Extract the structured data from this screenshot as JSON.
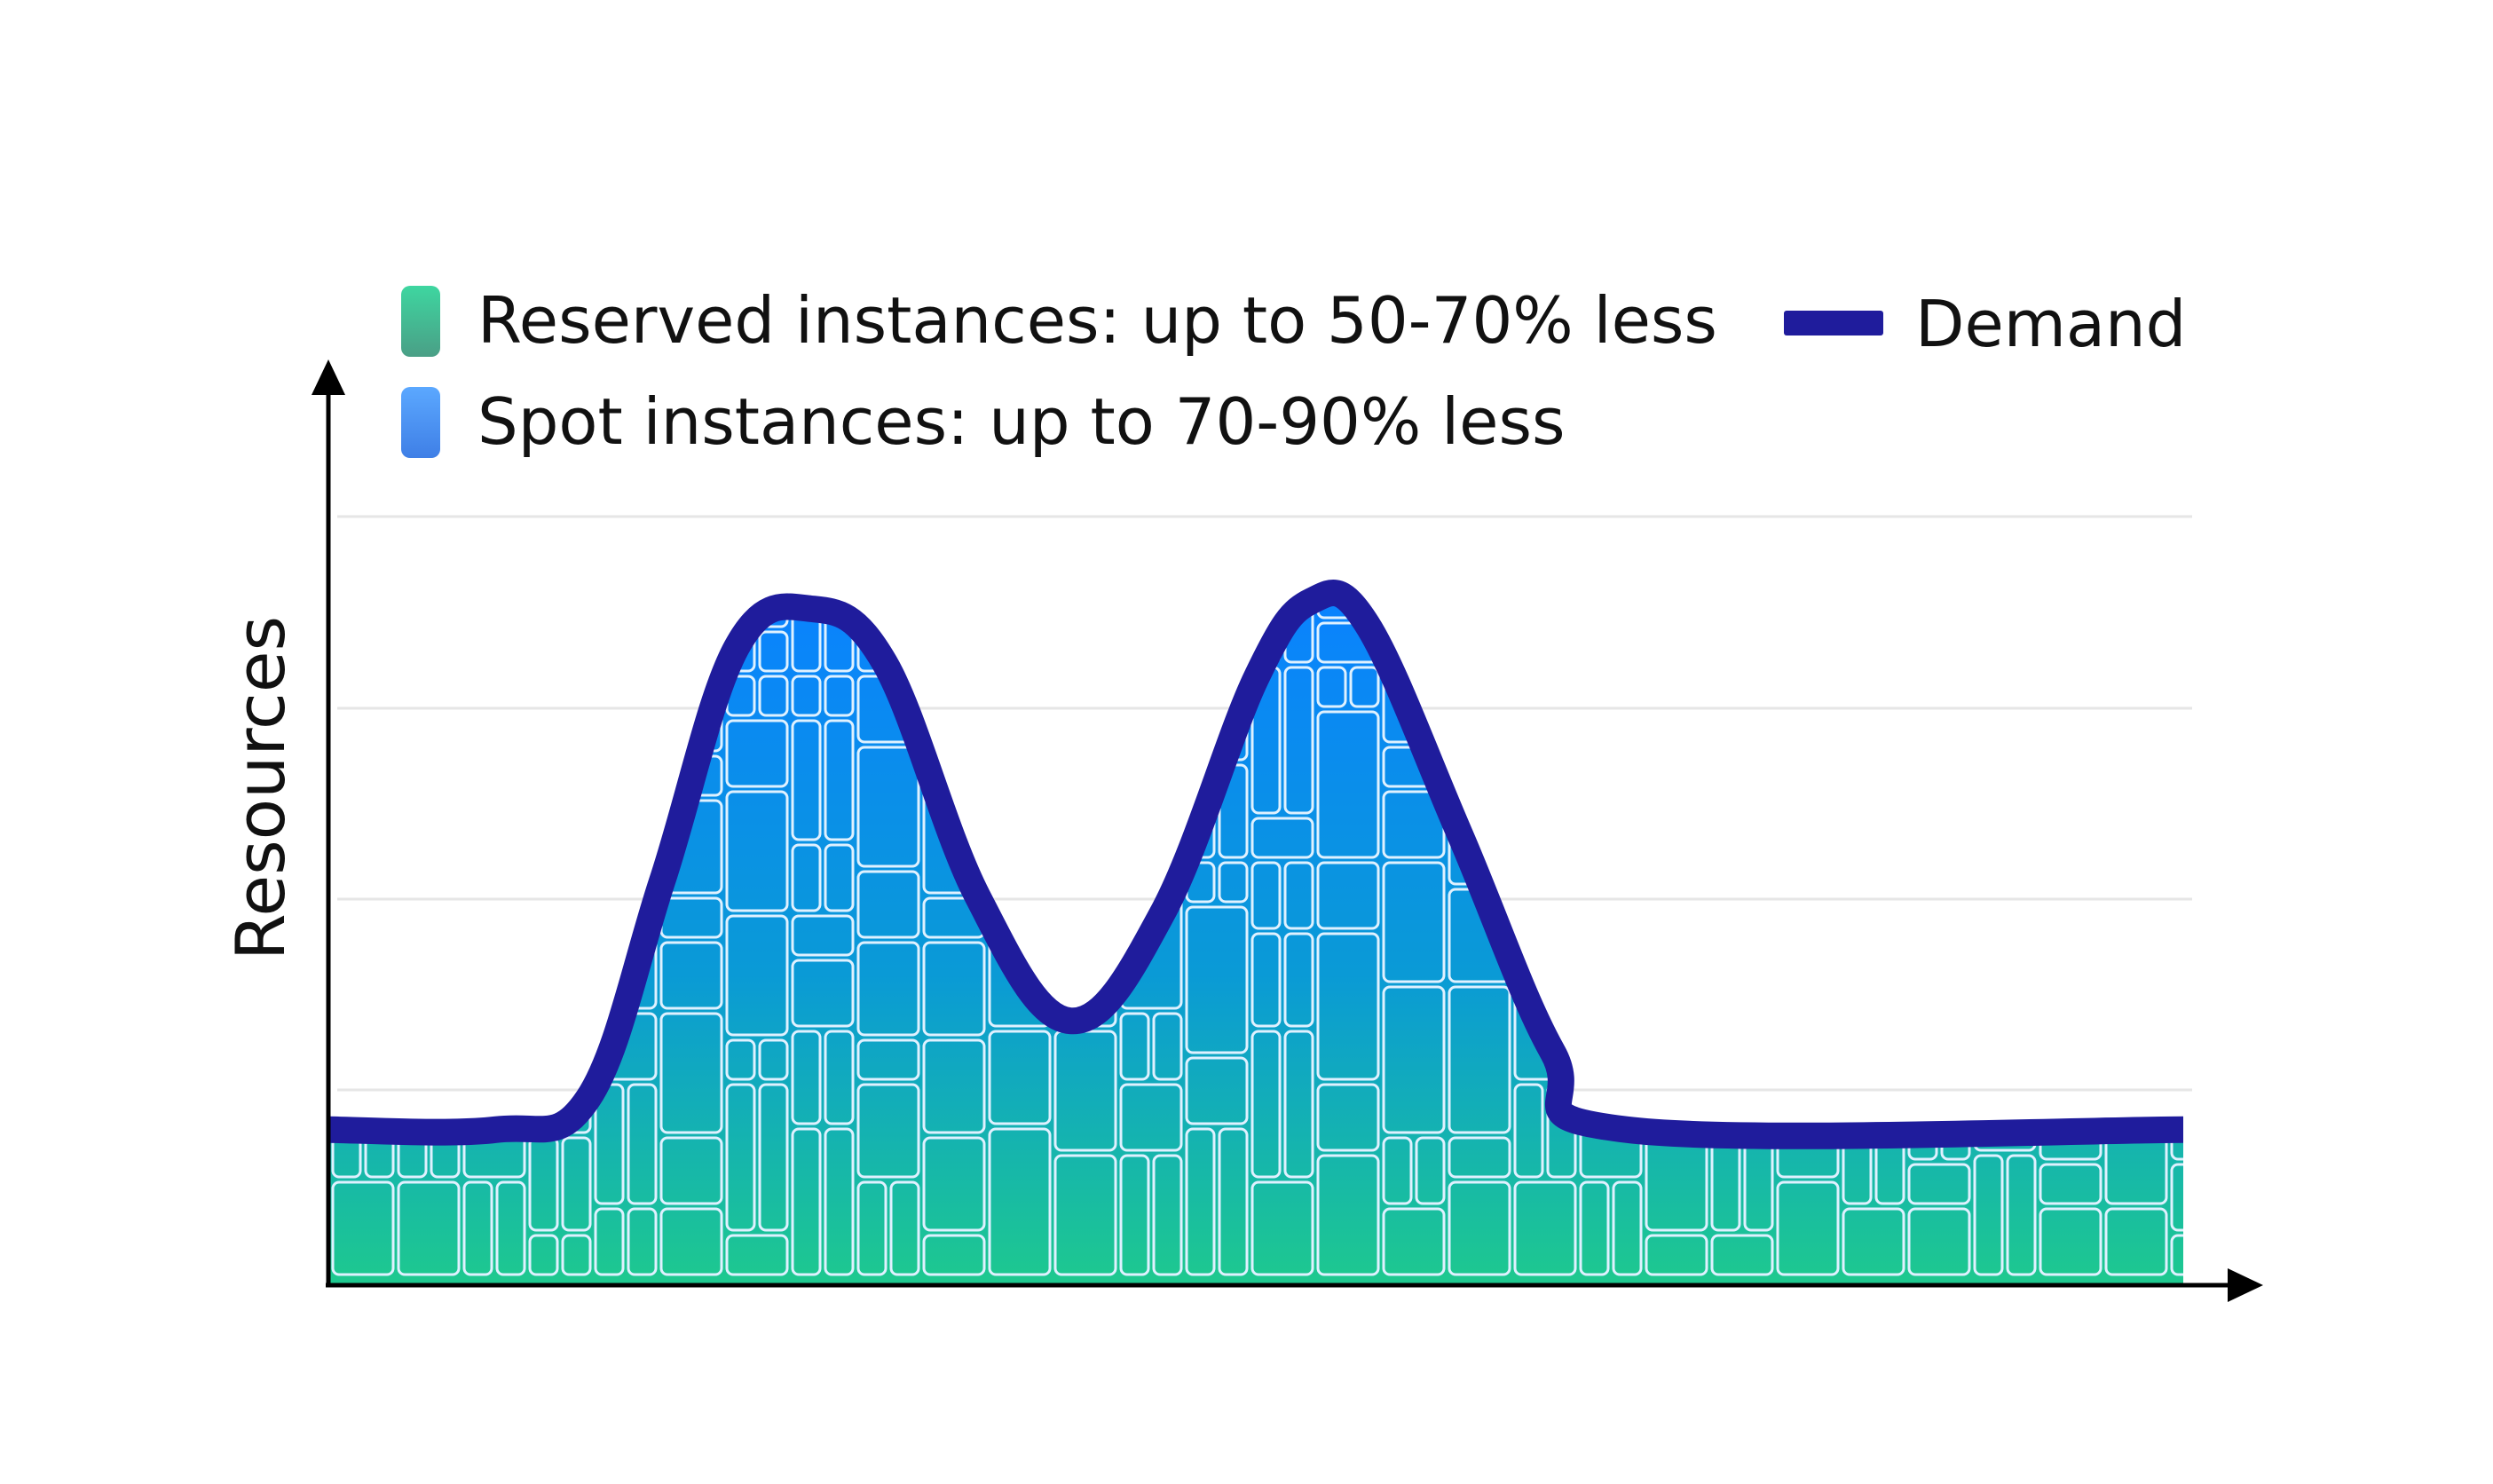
{
  "legend": {
    "reserved": {
      "label": "Reserved instances: up to 50-70% less",
      "swatch_top": "#3ed6a0",
      "swatch_bottom": "#4a9f86"
    },
    "spot": {
      "label": "Spot instances: up to 70-90% less",
      "swatch_top": "#5ba8ff",
      "swatch_bottom": "#3f7fe6"
    },
    "demand": {
      "label": "Demand",
      "color": "#1f1c9c"
    }
  },
  "axes": {
    "y_label": "Resources"
  },
  "colors": {
    "fill_top": "#0a82ff",
    "fill_mid": "#0a9ad6",
    "fill_bottom": "#1ec98e",
    "grid": "#e6e6e6",
    "axis": "#000000",
    "block_stroke": "#dff1ff"
  },
  "demand_curve": {
    "x_units": "relative time (0-100)",
    "y_units": "relative resources (0-100)",
    "points": [
      [
        0,
        20
      ],
      [
        9,
        20
      ],
      [
        14,
        24
      ],
      [
        18,
        52
      ],
      [
        22,
        82
      ],
      [
        26,
        87
      ],
      [
        30,
        80
      ],
      [
        35,
        50
      ],
      [
        40,
        34
      ],
      [
        45,
        48
      ],
      [
        50,
        78
      ],
      [
        53,
        88
      ],
      [
        56,
        85
      ],
      [
        61,
        58
      ],
      [
        66,
        30
      ],
      [
        70,
        20
      ],
      [
        100,
        20
      ]
    ]
  }
}
